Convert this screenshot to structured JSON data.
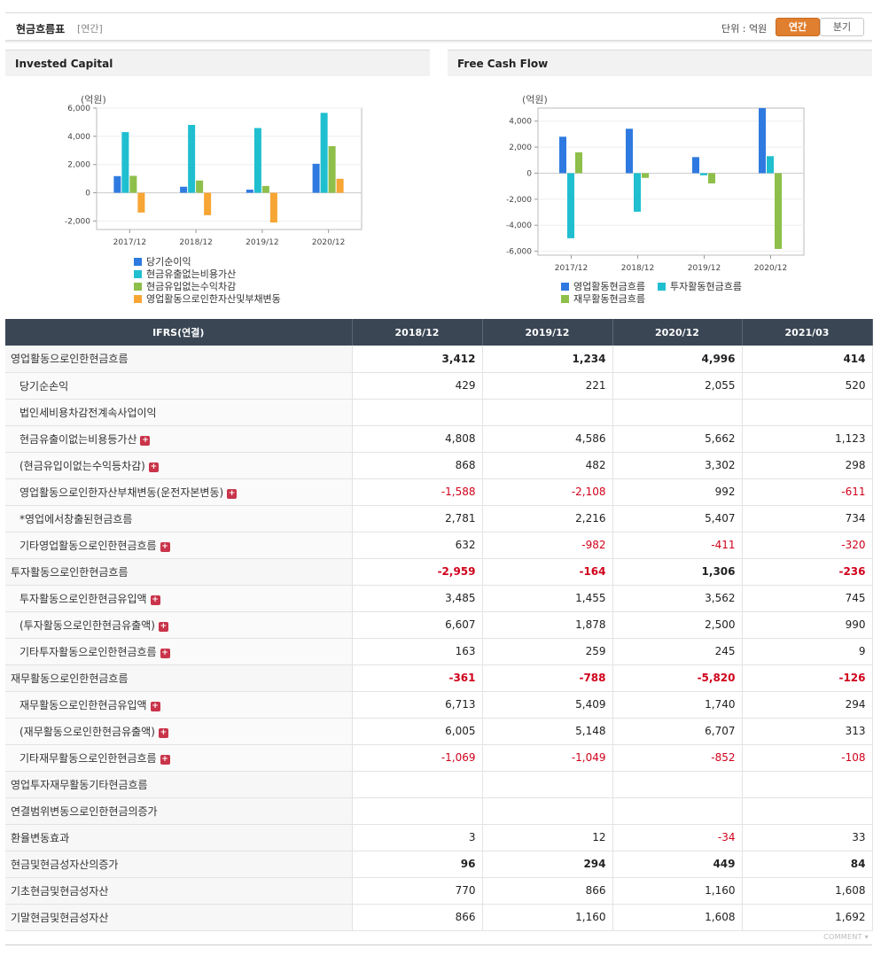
{
  "header": {
    "title": "현금흐름표",
    "subtitle": "[연간]",
    "unit_label": "단위 : 억원",
    "tab_annual": "연간",
    "tab_quarter": "분기"
  },
  "colors": {
    "blue": "#2e7ae0",
    "teal": "#1fbfd0",
    "green": "#8dbf4a",
    "orange": "#f7a534",
    "negative": "#d0021b"
  },
  "chart_data": [
    {
      "type": "bar",
      "title": "Invested Capital",
      "ylabel": "(억원)",
      "categories": [
        "2017/12",
        "2018/12",
        "2019/12",
        "2020/12"
      ],
      "ylim": [
        -2600,
        6000
      ],
      "yticks": [
        6000,
        4000,
        2000,
        0,
        -2000
      ],
      "ytick_labels": [
        "6,000",
        "4,000",
        "2,000",
        "0",
        "-2,000"
      ],
      "series": [
        {
          "name": "당기순이익",
          "color": "#2e7ae0",
          "values": [
            1180,
            429,
            221,
            2055
          ]
        },
        {
          "name": "현금유출없는비용가산",
          "color": "#1fbfd0",
          "values": [
            4300,
            4808,
            4586,
            5662
          ]
        },
        {
          "name": "현금유입없는수익차감",
          "color": "#8dbf4a",
          "values": [
            1200,
            868,
            482,
            3302
          ]
        },
        {
          "name": "영업활동으로인한자산및부채변동",
          "color": "#f7a534",
          "values": [
            -1400,
            -1588,
            -2108,
            992
          ]
        }
      ]
    },
    {
      "type": "bar",
      "title": "Free Cash Flow",
      "ylabel": "(억원)",
      "categories": [
        "2017/12",
        "2018/12",
        "2019/12",
        "2020/12"
      ],
      "ylim": [
        -6300,
        5000
      ],
      "yticks": [
        4000,
        2000,
        0,
        -2000,
        -4000,
        -6000
      ],
      "ytick_labels": [
        "4,000",
        "2,000",
        "0",
        "-2,000",
        "-4,000",
        "-6,000"
      ],
      "series": [
        {
          "name": "영업활동현금흐름",
          "color": "#2e7ae0",
          "values": [
            2800,
            3412,
            1234,
            4996
          ]
        },
        {
          "name": "투자활동현금흐름",
          "color": "#1fbfd0",
          "values": [
            -5000,
            -2959,
            -164,
            1306
          ]
        },
        {
          "name": "재무활동현금흐름",
          "color": "#8dbf4a",
          "values": [
            1600,
            -361,
            -788,
            -5820
          ]
        }
      ]
    }
  ],
  "table": {
    "header_label": "IFRS(연결)",
    "columns": [
      "2018/12",
      "2019/12",
      "2020/12",
      "2021/03"
    ],
    "rows": [
      {
        "label": "영업활동으로인한현금흐름",
        "level": 0,
        "bold": true,
        "plus": false,
        "sep": false,
        "values": [
          "3,412",
          "1,234",
          "4,996",
          "414"
        ]
      },
      {
        "label": "당기순손익",
        "level": 1,
        "bold": false,
        "plus": false,
        "sep": false,
        "values": [
          "429",
          "221",
          "2,055",
          "520"
        ]
      },
      {
        "label": "법인세비용차감전계속사업이익",
        "level": 1,
        "bold": false,
        "plus": false,
        "sep": false,
        "values": [
          "",
          "",
          "",
          ""
        ]
      },
      {
        "label": "현금유출이없는비용등가산",
        "level": 1,
        "bold": false,
        "plus": true,
        "sep": false,
        "values": [
          "4,808",
          "4,586",
          "5,662",
          "1,123"
        ]
      },
      {
        "label": "(현금유입이없는수익등차감)",
        "level": 1,
        "bold": false,
        "plus": true,
        "sep": false,
        "values": [
          "868",
          "482",
          "3,302",
          "298"
        ]
      },
      {
        "label": "영업활동으로인한자산부채변동(운전자본변동)",
        "level": 1,
        "bold": false,
        "plus": true,
        "sep": false,
        "values": [
          "-1,588",
          "-2,108",
          "992",
          "-611"
        ]
      },
      {
        "label": "*영업에서창출된현금흐름",
        "level": 1,
        "bold": false,
        "plus": false,
        "sep": false,
        "values": [
          "2,781",
          "2,216",
          "5,407",
          "734"
        ]
      },
      {
        "label": "기타영업활동으로인한현금흐름",
        "level": 1,
        "bold": false,
        "plus": true,
        "sep": false,
        "values": [
          "632",
          "-982",
          "-411",
          "-320"
        ]
      },
      {
        "label": "투자활동으로인한현금흐름",
        "level": 0,
        "bold": true,
        "plus": false,
        "sep": true,
        "values": [
          "-2,959",
          "-164",
          "1,306",
          "-236"
        ]
      },
      {
        "label": "투자활동으로인한현금유입액",
        "level": 1,
        "bold": false,
        "plus": true,
        "sep": false,
        "values": [
          "3,485",
          "1,455",
          "3,562",
          "745"
        ]
      },
      {
        "label": "(투자활동으로인한현금유출액)",
        "level": 1,
        "bold": false,
        "plus": true,
        "sep": false,
        "values": [
          "6,607",
          "1,878",
          "2,500",
          "990"
        ]
      },
      {
        "label": "기타투자활동으로인한현금흐름",
        "level": 1,
        "bold": false,
        "plus": true,
        "sep": false,
        "values": [
          "163",
          "259",
          "245",
          "9"
        ]
      },
      {
        "label": "재무활동으로인한현금흐름",
        "level": 0,
        "bold": true,
        "plus": false,
        "sep": true,
        "values": [
          "-361",
          "-788",
          "-5,820",
          "-126"
        ]
      },
      {
        "label": "재무활동으로인한현금유입액",
        "level": 1,
        "bold": false,
        "plus": true,
        "sep": false,
        "values": [
          "6,713",
          "5,409",
          "1,740",
          "294"
        ]
      },
      {
        "label": "(재무활동으로인한현금유출액)",
        "level": 1,
        "bold": false,
        "plus": true,
        "sep": false,
        "values": [
          "6,005",
          "5,148",
          "6,707",
          "313"
        ]
      },
      {
        "label": "기타재무활동으로인한현금흐름",
        "level": 1,
        "bold": false,
        "plus": true,
        "sep": false,
        "values": [
          "-1,069",
          "-1,049",
          "-852",
          "-108"
        ]
      },
      {
        "label": "영업투자재무활동기타현금흐름",
        "level": 0,
        "bold": false,
        "plus": false,
        "sep": true,
        "values": [
          "",
          "",
          "",
          ""
        ]
      },
      {
        "label": "연결범위변동으로인한현금의증가",
        "level": 0,
        "bold": false,
        "plus": false,
        "sep": false,
        "values": [
          "",
          "",
          "",
          ""
        ]
      },
      {
        "label": "환율변동효과",
        "level": 0,
        "bold": false,
        "plus": false,
        "sep": false,
        "values": [
          "3",
          "12",
          "-34",
          "33"
        ]
      },
      {
        "label": "현금및현금성자산의증가",
        "level": 0,
        "bold": true,
        "plus": false,
        "sep": false,
        "values": [
          "96",
          "294",
          "449",
          "84"
        ]
      },
      {
        "label": "기초현금및현금성자산",
        "level": 0,
        "bold": false,
        "plus": false,
        "sep": false,
        "values": [
          "770",
          "866",
          "1,160",
          "1,608"
        ]
      },
      {
        "label": "기말현금및현금성자산",
        "level": 0,
        "bold": false,
        "plus": false,
        "sep": false,
        "values": [
          "866",
          "1,160",
          "1,608",
          "1,692"
        ]
      }
    ]
  },
  "footer": {
    "comment": "COMMENT"
  }
}
